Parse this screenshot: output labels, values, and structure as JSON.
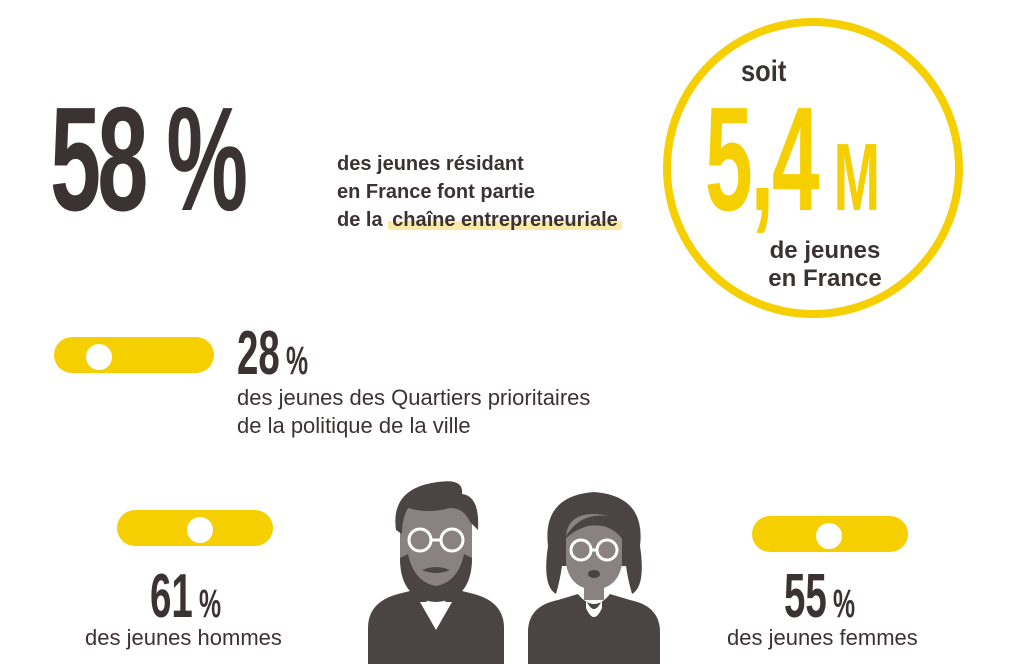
{
  "headline": {
    "percent": "58 %",
    "text_line1": "des jeunes résidant",
    "text_line2": "en France font partie",
    "text_line3_prefix": "de la",
    "text_line3_highlight": "chaîne entrepreneuriale"
  },
  "circle": {
    "prefix": "soit",
    "value": "5,4",
    "unit": "M",
    "line1": "de jeunes",
    "line2": "en France"
  },
  "qpv": {
    "value": "28",
    "unit": "%",
    "line1": "des jeunes des Quartiers prioritaires",
    "line2": "de la politique de la ville"
  },
  "men": {
    "value": "61",
    "unit": "%",
    "label": "des jeunes hommes"
  },
  "women": {
    "value": "55",
    "unit": "%",
    "label": "des jeunes femmes"
  },
  "colors": {
    "accent": "#f6cf00",
    "text": "#3b3333",
    "icon": "#4a4444",
    "highlight": "#fbe9a6"
  },
  "icons": {
    "man": "bearded-man-icon",
    "woman": "woman-glasses-icon"
  }
}
